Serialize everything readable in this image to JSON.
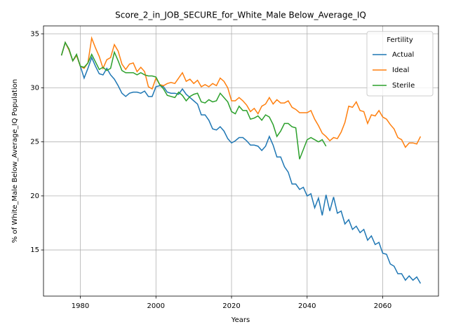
{
  "chart_data": {
    "type": "line",
    "title": "Score_2_in_JOB_SECURE_for_White_Male Below_Average_IQ",
    "x_label": "Years",
    "y_label": "% of White_Male Below_Average_IQ Population",
    "x": [
      1975,
      1976,
      1977,
      1978,
      1979,
      1980,
      1981,
      1982,
      1983,
      1984,
      1985,
      1986,
      1987,
      1988,
      1989,
      1990,
      1991,
      1992,
      1993,
      1994,
      1995,
      1996,
      1997,
      1998,
      1999,
      2000,
      2001,
      2002,
      2003,
      2004,
      2005,
      2006,
      2007,
      2008,
      2009,
      2010,
      2011,
      2012,
      2013,
      2014,
      2015,
      2016,
      2017,
      2018,
      2019,
      2020,
      2021,
      2022,
      2023,
      2024,
      2025,
      2026,
      2027,
      2028,
      2029,
      2030,
      2031,
      2032,
      2033,
      2034,
      2035,
      2036,
      2037,
      2038,
      2039,
      2040,
      2041,
      2042,
      2043,
      2044,
      2045,
      2046,
      2047,
      2048,
      2049,
      2050,
      2051,
      2052,
      2053,
      2054,
      2055,
      2056,
      2057,
      2058,
      2059,
      2060,
      2061,
      2062,
      2063,
      2064,
      2065,
      2066,
      2067,
      2068,
      2069,
      2070
    ],
    "series": [
      {
        "name": "Actual",
        "color": "#1f77b4",
        "values": [
          33.0,
          34.2,
          33.5,
          32.5,
          33.0,
          32.0,
          30.9,
          31.8,
          32.8,
          32.0,
          31.3,
          31.2,
          31.8,
          31.2,
          30.8,
          30.2,
          29.5,
          29.2,
          29.5,
          29.6,
          29.6,
          29.5,
          29.7,
          29.2,
          29.2,
          30.1,
          30.2,
          30.1,
          29.6,
          29.5,
          29.5,
          29.4,
          29.9,
          29.4,
          29.1,
          28.8,
          28.5,
          27.5,
          27.5,
          27.0,
          26.2,
          26.1,
          26.4,
          26.0,
          25.3,
          24.9,
          25.1,
          25.4,
          25.4,
          25.1,
          24.7,
          24.7,
          24.6,
          24.2,
          24.6,
          25.5,
          24.7,
          23.6,
          23.6,
          22.7,
          22.2,
          21.1,
          21.1,
          20.6,
          20.8,
          20.0,
          20.2,
          18.9,
          19.8,
          18.2,
          20.1,
          18.6,
          19.9,
          18.4,
          18.6,
          17.4,
          17.8,
          16.9,
          17.2,
          16.6,
          16.9,
          15.9,
          16.3,
          15.5,
          15.7,
          14.7,
          14.6,
          13.7,
          13.5,
          12.8,
          12.8,
          12.2,
          12.6,
          12.2,
          12.5,
          11.9
        ]
      },
      {
        "name": "Ideal",
        "color": "#ff7f0e",
        "values": [
          33.0,
          34.2,
          33.5,
          32.5,
          33.0,
          32.0,
          31.8,
          32.3,
          34.6,
          33.7,
          32.9,
          31.8,
          32.6,
          32.8,
          34.0,
          33.4,
          32.2,
          31.7,
          32.2,
          32.3,
          31.5,
          31.9,
          31.5,
          30.1,
          29.9,
          30.9,
          30.3,
          30.2,
          30.4,
          30.5,
          30.4,
          30.9,
          31.4,
          30.6,
          30.8,
          30.4,
          30.7,
          30.1,
          30.3,
          30.1,
          30.4,
          30.2,
          30.9,
          30.6,
          30.0,
          28.8,
          28.8,
          29.1,
          28.8,
          28.4,
          27.8,
          28.1,
          27.6,
          28.3,
          28.5,
          29.1,
          28.5,
          28.9,
          28.6,
          28.6,
          28.8,
          28.2,
          28.0,
          27.7,
          27.7,
          27.7,
          27.9,
          27.1,
          26.5,
          25.8,
          25.5,
          25.1,
          25.4,
          25.3,
          25.9,
          26.8,
          28.3,
          28.2,
          28.7,
          27.9,
          27.8,
          26.7,
          27.5,
          27.4,
          27.9,
          27.3,
          27.1,
          26.6,
          26.2,
          25.4,
          25.2,
          24.5,
          24.9,
          24.9,
          24.8,
          25.5
        ]
      },
      {
        "name": "Sterile",
        "color": "#2ca02c",
        "values": [
          33.0,
          34.2,
          33.6,
          32.5,
          33.1,
          32.0,
          31.9,
          32.3,
          33.1,
          32.4,
          31.7,
          31.9,
          31.6,
          31.8,
          33.3,
          32.5,
          31.6,
          31.4,
          31.4,
          31.4,
          31.2,
          31.4,
          31.2,
          31.1,
          31.1,
          31.0,
          30.3,
          29.9,
          29.3,
          29.2,
          29.1,
          29.6,
          29.3,
          28.8,
          29.2,
          29.4,
          29.5,
          28.7,
          28.6,
          28.9,
          28.7,
          28.8,
          29.5,
          29.1,
          28.7,
          27.8,
          27.6,
          28.3,
          27.9,
          27.9,
          27.1,
          27.2,
          27.4,
          27.0,
          27.5,
          27.3,
          26.6,
          25.5,
          26.0,
          26.7,
          26.7,
          26.4,
          26.3,
          23.4,
          24.3,
          25.2,
          25.4,
          25.2,
          25.0,
          25.2,
          24.6,
          null,
          null,
          null,
          null,
          null,
          null,
          null,
          null,
          null,
          null,
          null,
          null,
          null,
          null,
          null,
          null,
          null,
          null,
          null,
          null,
          null,
          null,
          null,
          null,
          null
        ]
      }
    ],
    "xlim": [
      1970.25,
      2074.75
    ],
    "xticks": [
      1980,
      2000,
      2020,
      2040,
      2060
    ],
    "ylim": [
      10.73,
      35.73
    ],
    "yticks": [
      15,
      20,
      25,
      30,
      35
    ],
    "grid": true,
    "legend_title": "Fertility",
    "legend_position": "upper right"
  }
}
